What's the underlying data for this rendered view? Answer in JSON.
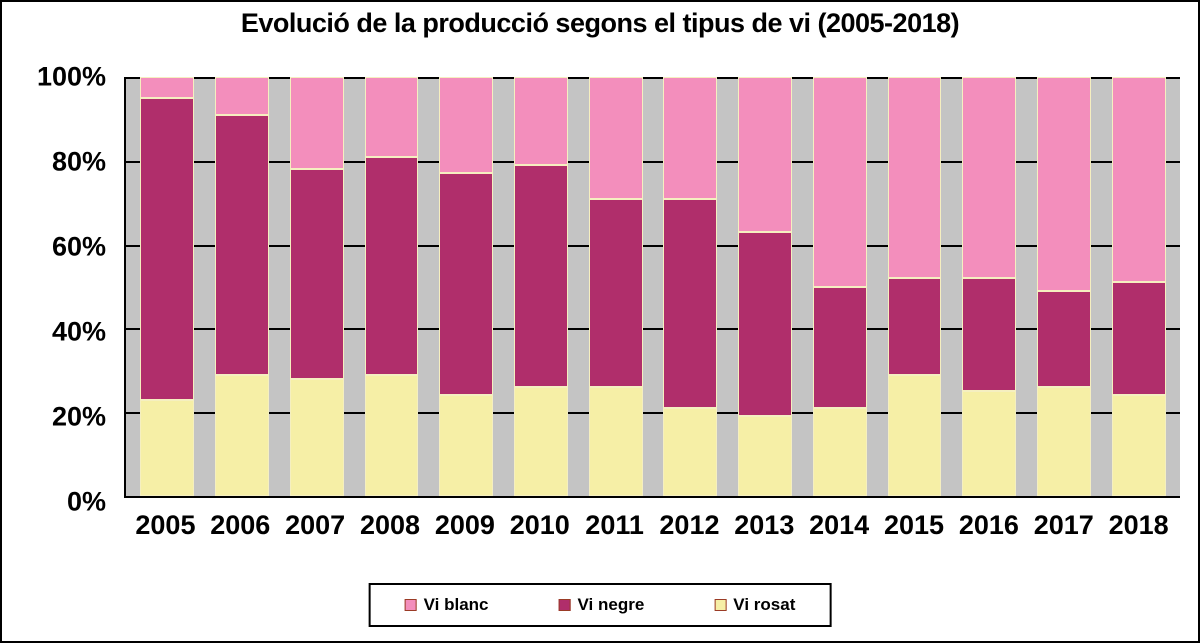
{
  "chart_data": {
    "type": "bar",
    "subtype": "stacked-100-percent",
    "title": "Evolució de la producció segons el tipus de vi (2005-2018)",
    "categories": [
      "2005",
      "2006",
      "2007",
      "2008",
      "2009",
      "2010",
      "2011",
      "2012",
      "2013",
      "2014",
      "2015",
      "2016",
      "2017",
      "2018"
    ],
    "series": [
      {
        "name": "Vi blanc",
        "color": "#F38EBC",
        "values": [
          5,
          9,
          22,
          19,
          23,
          21,
          29,
          29,
          37,
          50,
          48,
          48,
          51,
          49
        ]
      },
      {
        "name": "Vi negre",
        "color": "#B02E6B",
        "values": [
          72,
          62,
          50,
          52,
          53,
          53,
          45,
          50,
          44,
          29,
          23,
          27,
          23,
          27
        ]
      },
      {
        "name": "Vi rosat",
        "color": "#F6EFA6",
        "values": [
          23,
          29,
          28,
          29,
          24,
          26,
          26,
          21,
          19,
          21,
          29,
          25,
          26,
          24
        ]
      }
    ],
    "stack_order_bottom_to_top": [
      "Vi rosat",
      "Vi negre",
      "Vi blanc"
    ],
    "xlabel": "",
    "ylabel": "",
    "ylim": [
      0,
      100
    ],
    "y_tick_values": [
      0,
      20,
      40,
      60,
      80,
      100
    ],
    "y_tick_labels": [
      "0%",
      "20%",
      "40%",
      "60%",
      "80%",
      "100%"
    ],
    "grid": "horizontal major gridlines every 20%",
    "legend_position": "bottom-center",
    "legend_labels": [
      "Vi blanc",
      "Vi negre",
      "Vi rosat"
    ],
    "colors": {
      "plot_background": "#C4C4C4",
      "gridline": "#000000",
      "segment_border": "#F5EFC0",
      "text": "#000000"
    }
  }
}
